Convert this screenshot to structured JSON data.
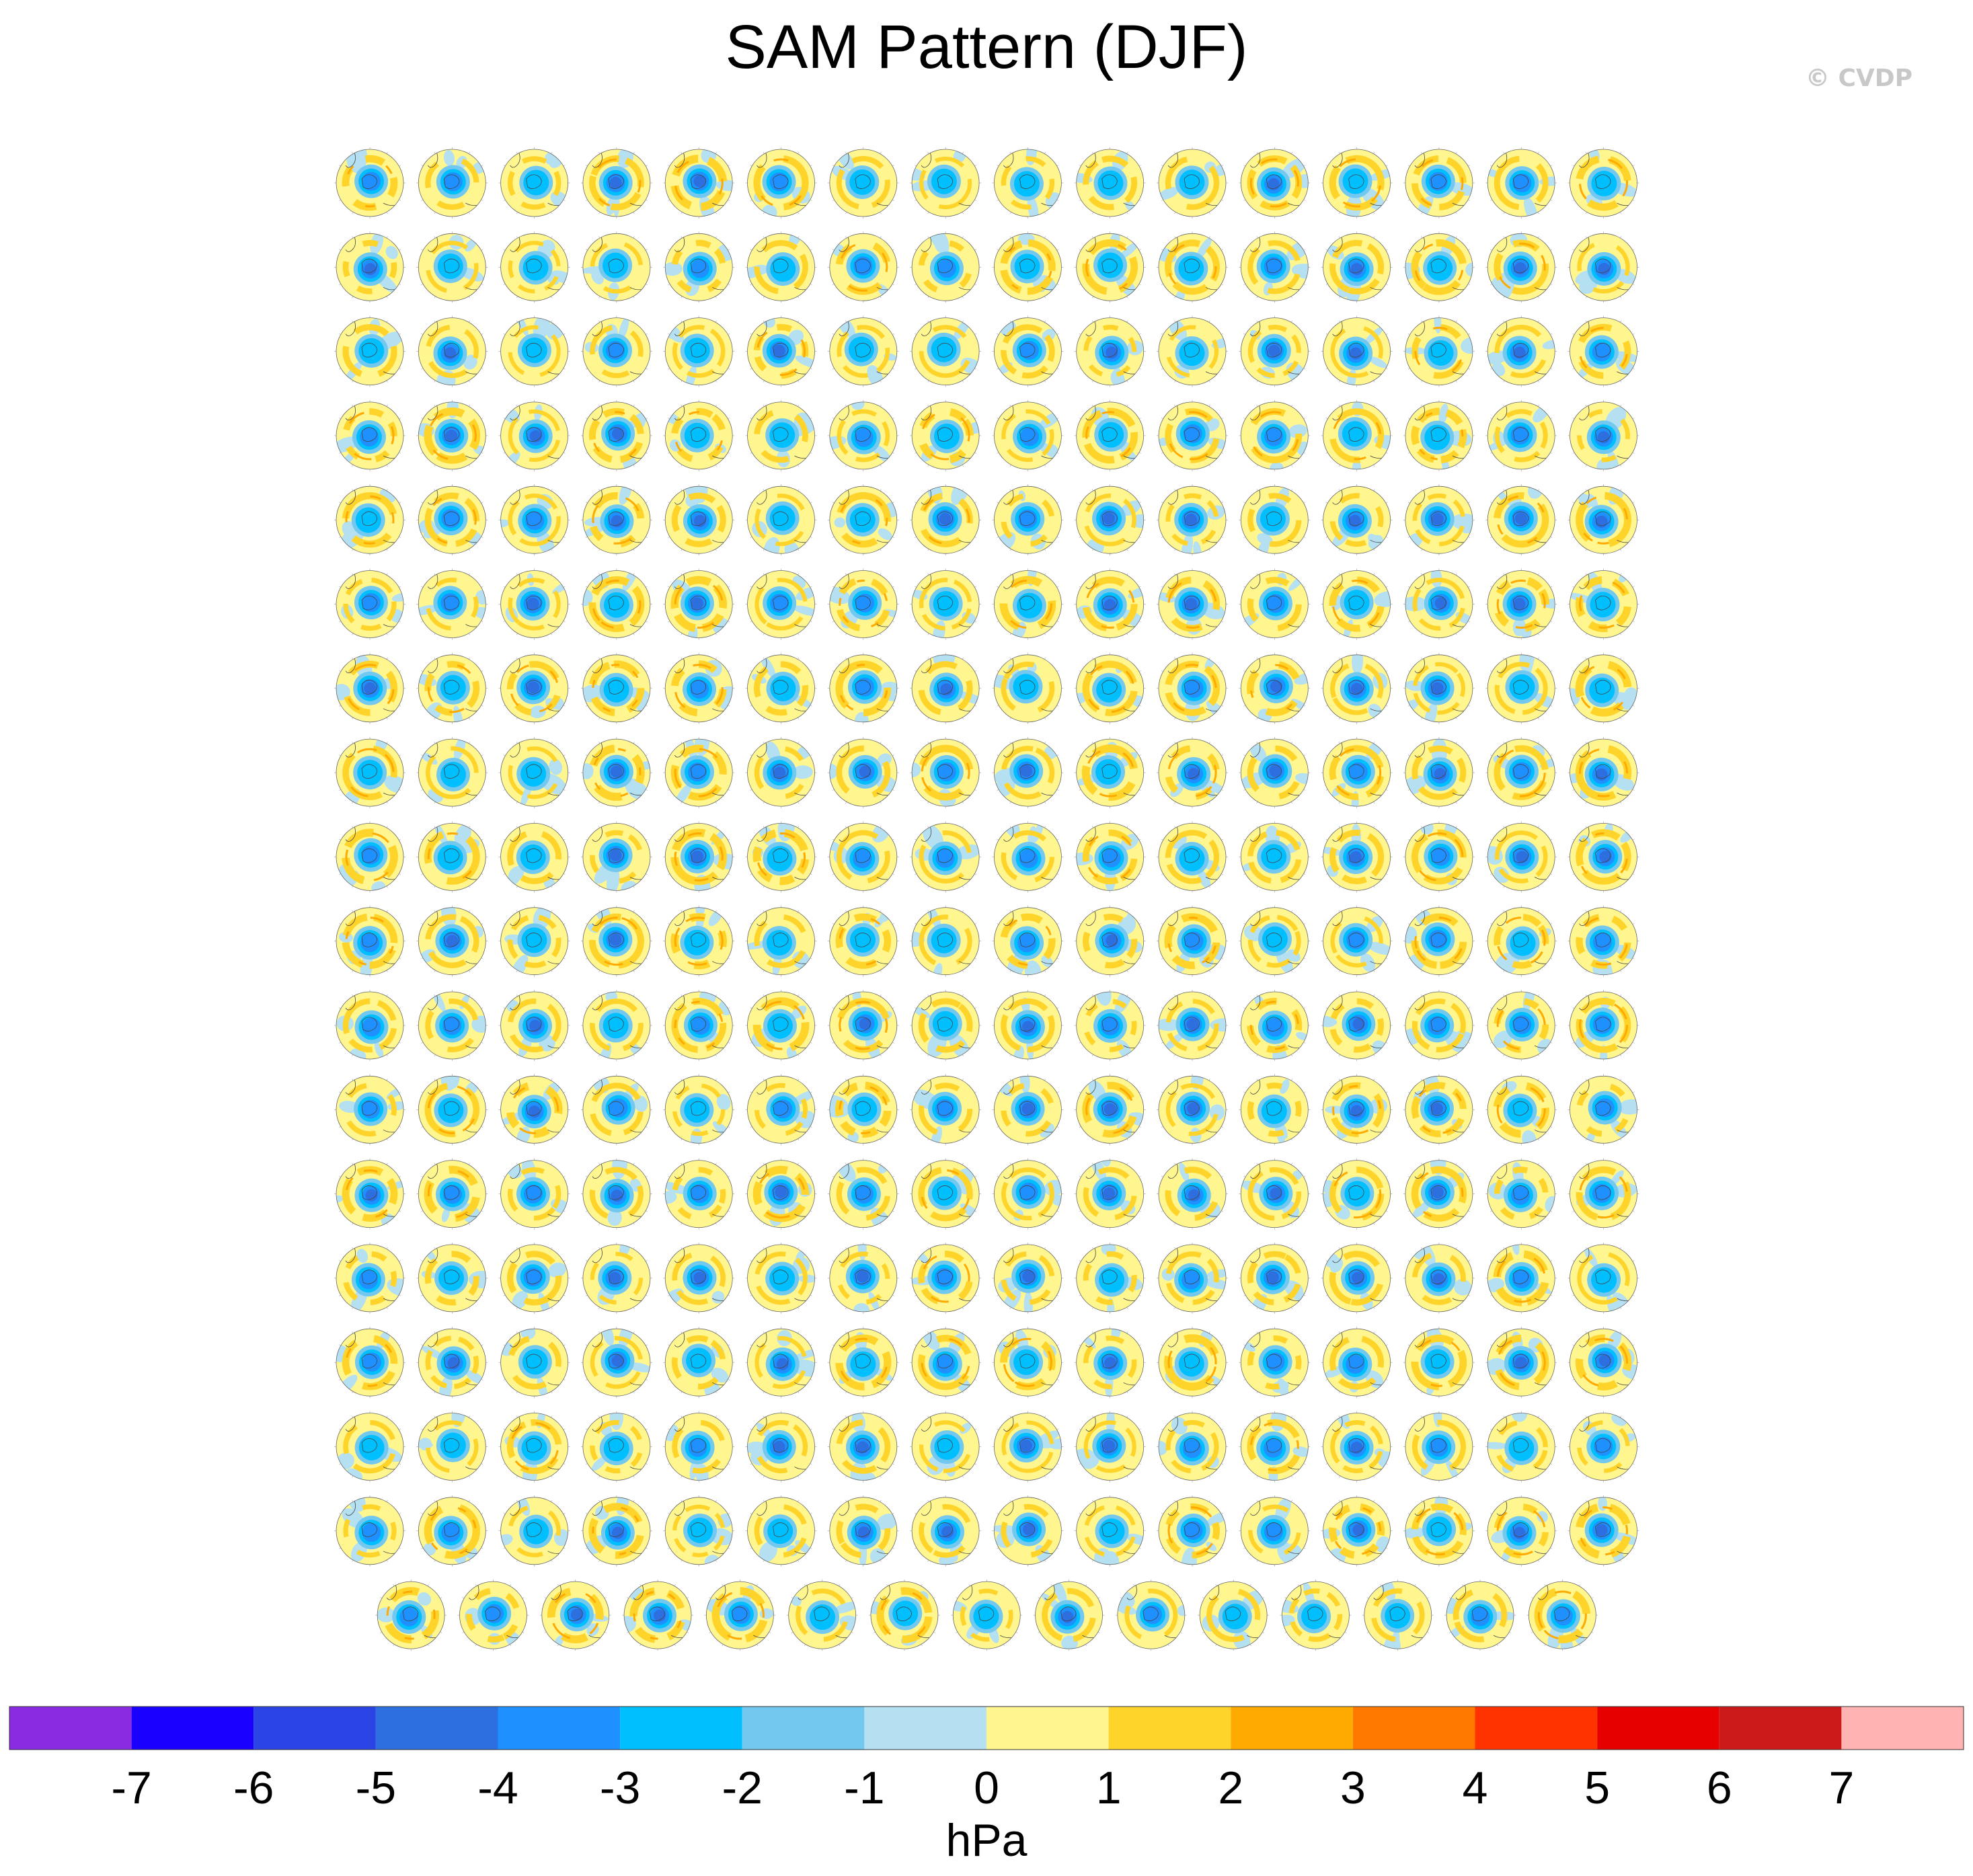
{
  "title": "SAM Pattern (DJF)",
  "copyright": "© CVDP",
  "chart_data": {
    "type": "heatmap",
    "title": "SAM Pattern (DJF)",
    "description_layout": "grid of polar stereographic maps",
    "rows": 18,
    "columns": 16,
    "last_row_columns": 15,
    "panel_count": 287,
    "colorbar": {
      "unit": "hPa",
      "ticks": [
        -7,
        -6,
        -5,
        -4,
        -3,
        -2,
        -1,
        0,
        1,
        2,
        3,
        4,
        5,
        6,
        7
      ],
      "colors": [
        "#8a2be2",
        "#1a00ff",
        "#2a44e6",
        "#2e6fe0",
        "#1e90ff",
        "#00bfff",
        "#73c8f0",
        "#b4e0f2",
        "#fff68f",
        "#ffd42a",
        "#ffaa00",
        "#ff7800",
        "#ff3300",
        "#e60000",
        "#cc1a1a",
        "#ffb3b3"
      ]
    }
  }
}
